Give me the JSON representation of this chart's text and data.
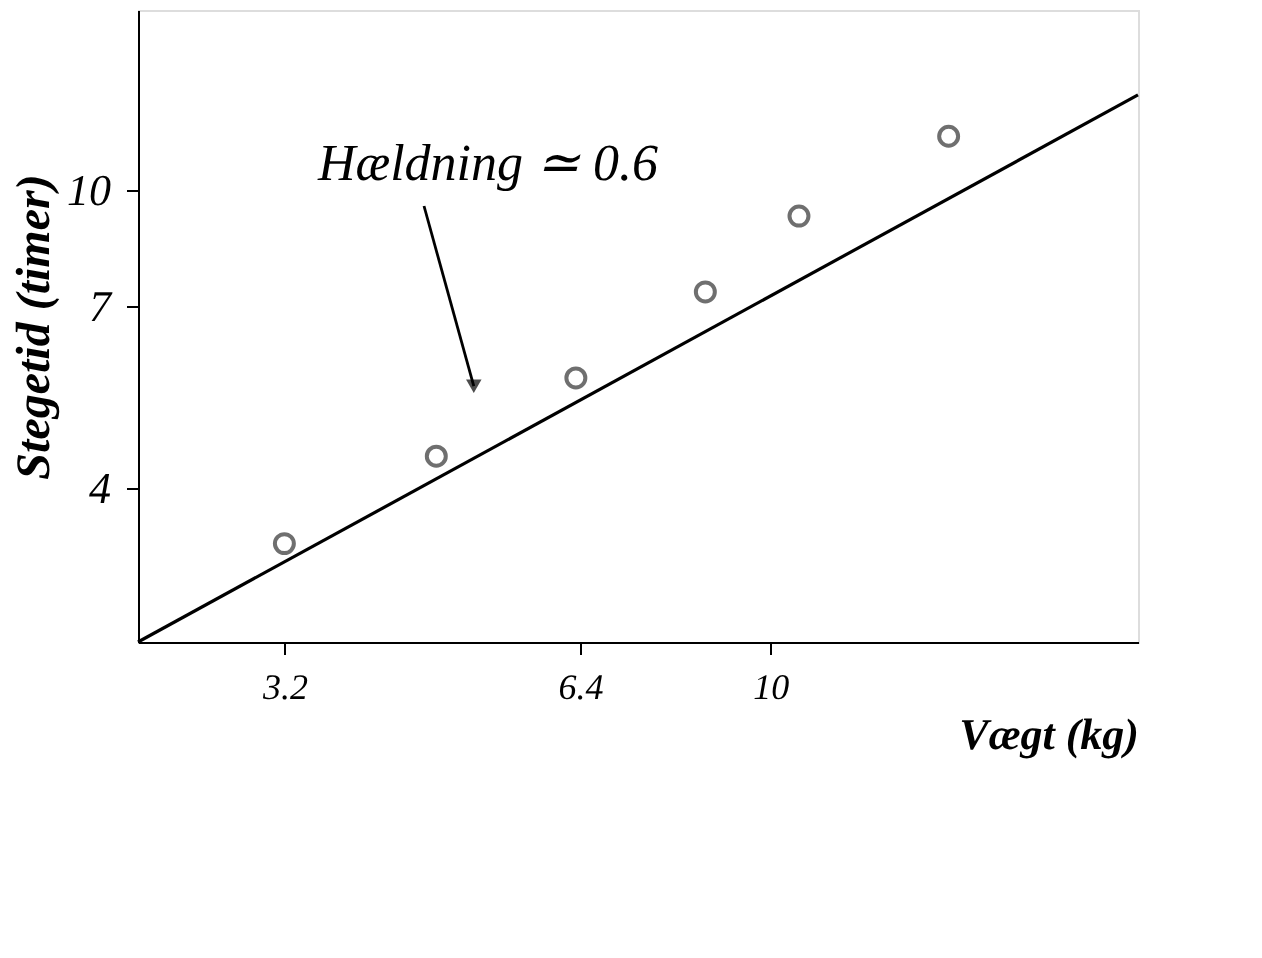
{
  "chart_data": {
    "type": "scatter",
    "log": "xy",
    "xlabel": "Vægt (kg)",
    "ylabel": "Stegetid (timer)",
    "xlim": [
      2.27,
      23.7
    ],
    "ylim": [
      2.49,
      17.4
    ],
    "xticks": [
      3.2,
      6.4,
      10
    ],
    "yticks": [
      4,
      7,
      10
    ],
    "grid": false,
    "series": [
      {
        "color": "#333333",
        "marker": "circle",
        "x": [
          3.2,
          4.57,
          6.34,
          8.59,
          10.7,
          15.2
        ],
        "values": [
          3.37,
          4.41,
          5.61,
          7.31,
          9.23,
          11.8
        ]
      },
      {
        "type": "line",
        "color": "#000000",
        "line_style": "solid",
        "x": [
          2.27,
          23.7
        ],
        "values": [
          2.49,
          13.4
        ]
      }
    ],
    "annotations": [
      {
        "text": "Hældning ≃ 0.6",
        "x": 4.99,
        "y": 5.47
      }
    ]
  }
}
